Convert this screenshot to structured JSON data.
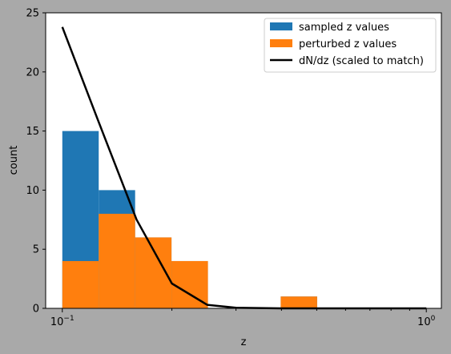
{
  "chart_data": {
    "type": "bar",
    "xscale": "log",
    "xlabel": "z",
    "ylabel": "count",
    "xlim": [
      0.09,
      1.1
    ],
    "ylim": [
      0,
      25
    ],
    "x_ticks": [
      {
        "value": 0.1,
        "base": "10",
        "exp": "−1"
      },
      {
        "value": 1.0,
        "base": "10",
        "exp": "0"
      }
    ],
    "y_ticks": [
      0,
      5,
      10,
      15,
      20,
      25
    ],
    "bin_edges": [
      0.1,
      0.1259,
      0.1585,
      0.1995,
      0.2512,
      0.3162,
      0.3981,
      0.5012,
      0.631,
      0.7943,
      1.0
    ],
    "series": [
      {
        "name": "sampled z values",
        "kind": "hist",
        "color": "#1f77b4",
        "values": [
          15,
          10,
          6,
          4,
          0,
          0,
          1,
          0,
          0,
          0
        ]
      },
      {
        "name": "perturbed z values",
        "kind": "hist",
        "color": "#ff7f0e",
        "values": [
          4,
          8,
          6,
          4,
          0,
          0,
          1,
          0,
          0,
          0
        ]
      },
      {
        "name": "dN/dz (scaled to match)",
        "kind": "line",
        "color": "#000000",
        "x": [
          0.1,
          0.125,
          0.16,
          0.2,
          0.25,
          0.3,
          0.4,
          0.5,
          0.63,
          0.8,
          1.0
        ],
        "y": [
          23.8,
          16,
          7.5,
          2.1,
          0.3,
          0.05,
          0.0,
          0.0,
          0.0,
          0.0,
          0.0
        ]
      }
    ],
    "legend_position": "top-right"
  }
}
